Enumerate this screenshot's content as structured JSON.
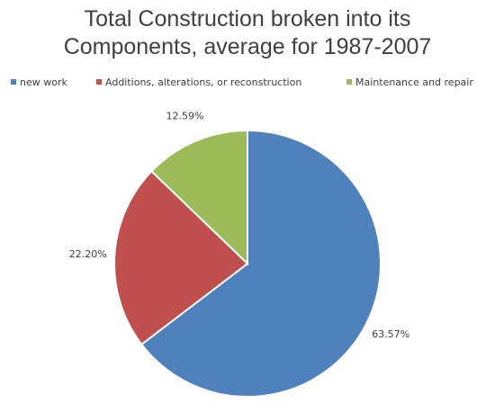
{
  "chart_data": {
    "type": "pie",
    "title": "Total Construction broken into its Components, average for 1987-2007",
    "categories": [
      "new work",
      "Additions, alterations, or reconstruction",
      "Maintenance and repair"
    ],
    "values": [
      63.57,
      22.2,
      12.59
    ],
    "value_labels": [
      "63.57%",
      "22.20%",
      "12.59%"
    ],
    "colors": [
      "#4f81bd",
      "#c0504d",
      "#9bbb59"
    ],
    "legend": "top"
  }
}
